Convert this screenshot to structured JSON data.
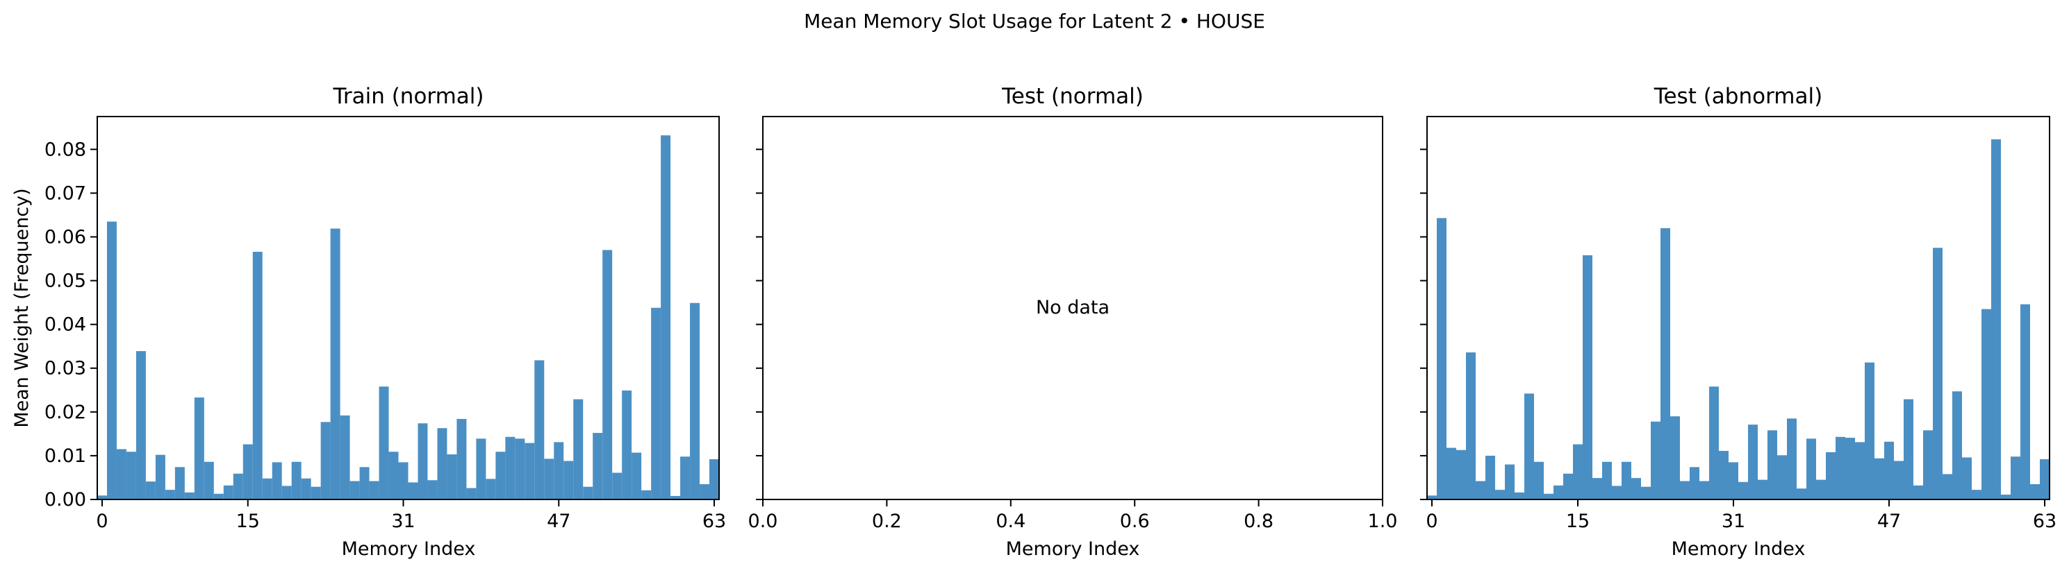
{
  "suptitle": "Mean Memory Slot Usage for Latent 2 • HOUSE",
  "colors": {
    "bar": "#4a8fc4",
    "axis": "#000000"
  },
  "chart_data": [
    {
      "type": "bar",
      "title": "Train (normal)",
      "xlabel": "Memory Index",
      "ylabel": "Mean Weight (Frequency)",
      "ylim": [
        0,
        0.0875
      ],
      "xlim": [
        -0.5,
        63.5
      ],
      "xticks": [
        0,
        15,
        31,
        47,
        63
      ],
      "yticks": [
        0.0,
        0.01,
        0.02,
        0.03,
        0.04,
        0.05,
        0.06,
        0.07,
        0.08
      ],
      "ytick_labels": [
        "0.00",
        "0.01",
        "0.02",
        "0.03",
        "0.04",
        "0.05",
        "0.06",
        "0.07",
        "0.08"
      ],
      "grid": false,
      "values": [
        0.0009,
        0.0635,
        0.0115,
        0.0109,
        0.0339,
        0.0041,
        0.0102,
        0.0022,
        0.0074,
        0.0016,
        0.0233,
        0.0086,
        0.0013,
        0.0032,
        0.0059,
        0.0126,
        0.0566,
        0.0048,
        0.0085,
        0.0031,
        0.0086,
        0.0048,
        0.0029,
        0.0177,
        0.0619,
        0.0192,
        0.0042,
        0.0074,
        0.0042,
        0.0258,
        0.0109,
        0.0085,
        0.0039,
        0.0174,
        0.0044,
        0.0163,
        0.0103,
        0.0184,
        0.0026,
        0.0139,
        0.0047,
        0.0109,
        0.0143,
        0.0139,
        0.0129,
        0.0318,
        0.0093,
        0.0131,
        0.0088,
        0.0229,
        0.0029,
        0.0152,
        0.057,
        0.0061,
        0.0249,
        0.0107,
        0.0021,
        0.0438,
        0.0832,
        0.0008,
        0.0098,
        0.0449,
        0.0035,
        0.0092
      ]
    },
    {
      "type": "bar",
      "title": "Test (normal)",
      "xlabel": "Memory Index",
      "xlim": [
        0,
        1
      ],
      "xticks": [
        0.0,
        0.2,
        0.4,
        0.6,
        0.8,
        1.0
      ],
      "xtick_labels": [
        "0.0",
        "0.2",
        "0.4",
        "0.6",
        "0.8",
        "1.0"
      ],
      "annotation": "No data",
      "values": []
    },
    {
      "type": "bar",
      "title": "Test (abnormal)",
      "xlabel": "Memory Index",
      "ylim": [
        0,
        0.0875
      ],
      "xlim": [
        -0.5,
        63.5
      ],
      "xticks": [
        0,
        15,
        31,
        47,
        63
      ],
      "grid": false,
      "values": [
        0.0009,
        0.0643,
        0.0118,
        0.0113,
        0.0336,
        0.0042,
        0.01,
        0.0022,
        0.008,
        0.0016,
        0.0242,
        0.0086,
        0.0013,
        0.0032,
        0.0059,
        0.0126,
        0.0558,
        0.0049,
        0.0086,
        0.0031,
        0.0086,
        0.0049,
        0.0029,
        0.0178,
        0.062,
        0.019,
        0.0042,
        0.0074,
        0.0042,
        0.0258,
        0.0111,
        0.0085,
        0.004,
        0.0171,
        0.0045,
        0.0158,
        0.0101,
        0.0185,
        0.0025,
        0.0139,
        0.0045,
        0.0108,
        0.0143,
        0.0141,
        0.0131,
        0.0313,
        0.0094,
        0.0132,
        0.0088,
        0.0229,
        0.0032,
        0.0158,
        0.0575,
        0.0058,
        0.0247,
        0.0096,
        0.0022,
        0.0435,
        0.0823,
        0.0011,
        0.0098,
        0.0446,
        0.0035,
        0.0092
      ]
    }
  ]
}
